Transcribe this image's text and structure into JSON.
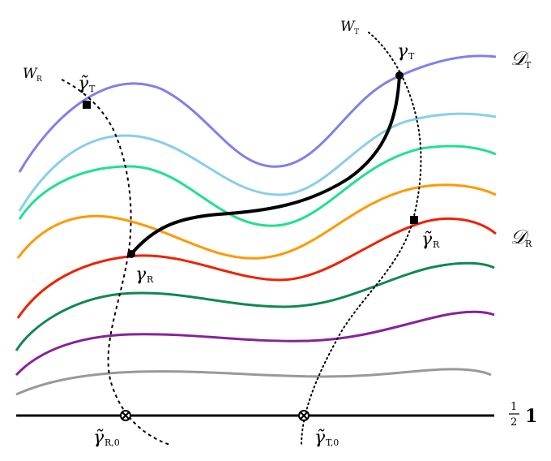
{
  "labels": {
    "W_R": "W",
    "W_R_sub": "R",
    "W_T": "W",
    "W_T_sub": "T",
    "gamma_T_tilde": "γ̃",
    "gamma_T_tilde_sub": "T",
    "gamma_T": "γ",
    "gamma_T_sub": "T",
    "D_T": "𝒟",
    "D_T_sub": "T",
    "D_R": "𝒟",
    "D_R_sub": "R",
    "gamma_R": "γ",
    "gamma_R_sub": "R",
    "gamma_R_tilde": "γ̃",
    "gamma_R_tilde_sub": "R",
    "gamma_R0_tilde": "γ̃",
    "gamma_R0_tilde_sub": "R,0",
    "gamma_T0_tilde": "γ̃",
    "gamma_T0_tilde_sub": "T,0",
    "half_num": "1",
    "half_den": "2",
    "identity": "1"
  },
  "curve_colors": {
    "D_T": "#8080e8",
    "light_blue": "#87ceeb",
    "mint": "#20e090",
    "orange": "#ff9900",
    "D_R": "#ee2200",
    "dark_green": "#108850",
    "purple": "#882299",
    "gray": "#999999",
    "baseline": "#000000"
  },
  "markers": {
    "filled_circle": "gamma-point-marker",
    "filled_square": "tilde-gamma-point-marker",
    "circled_cross": "gamma-zero-marker"
  }
}
